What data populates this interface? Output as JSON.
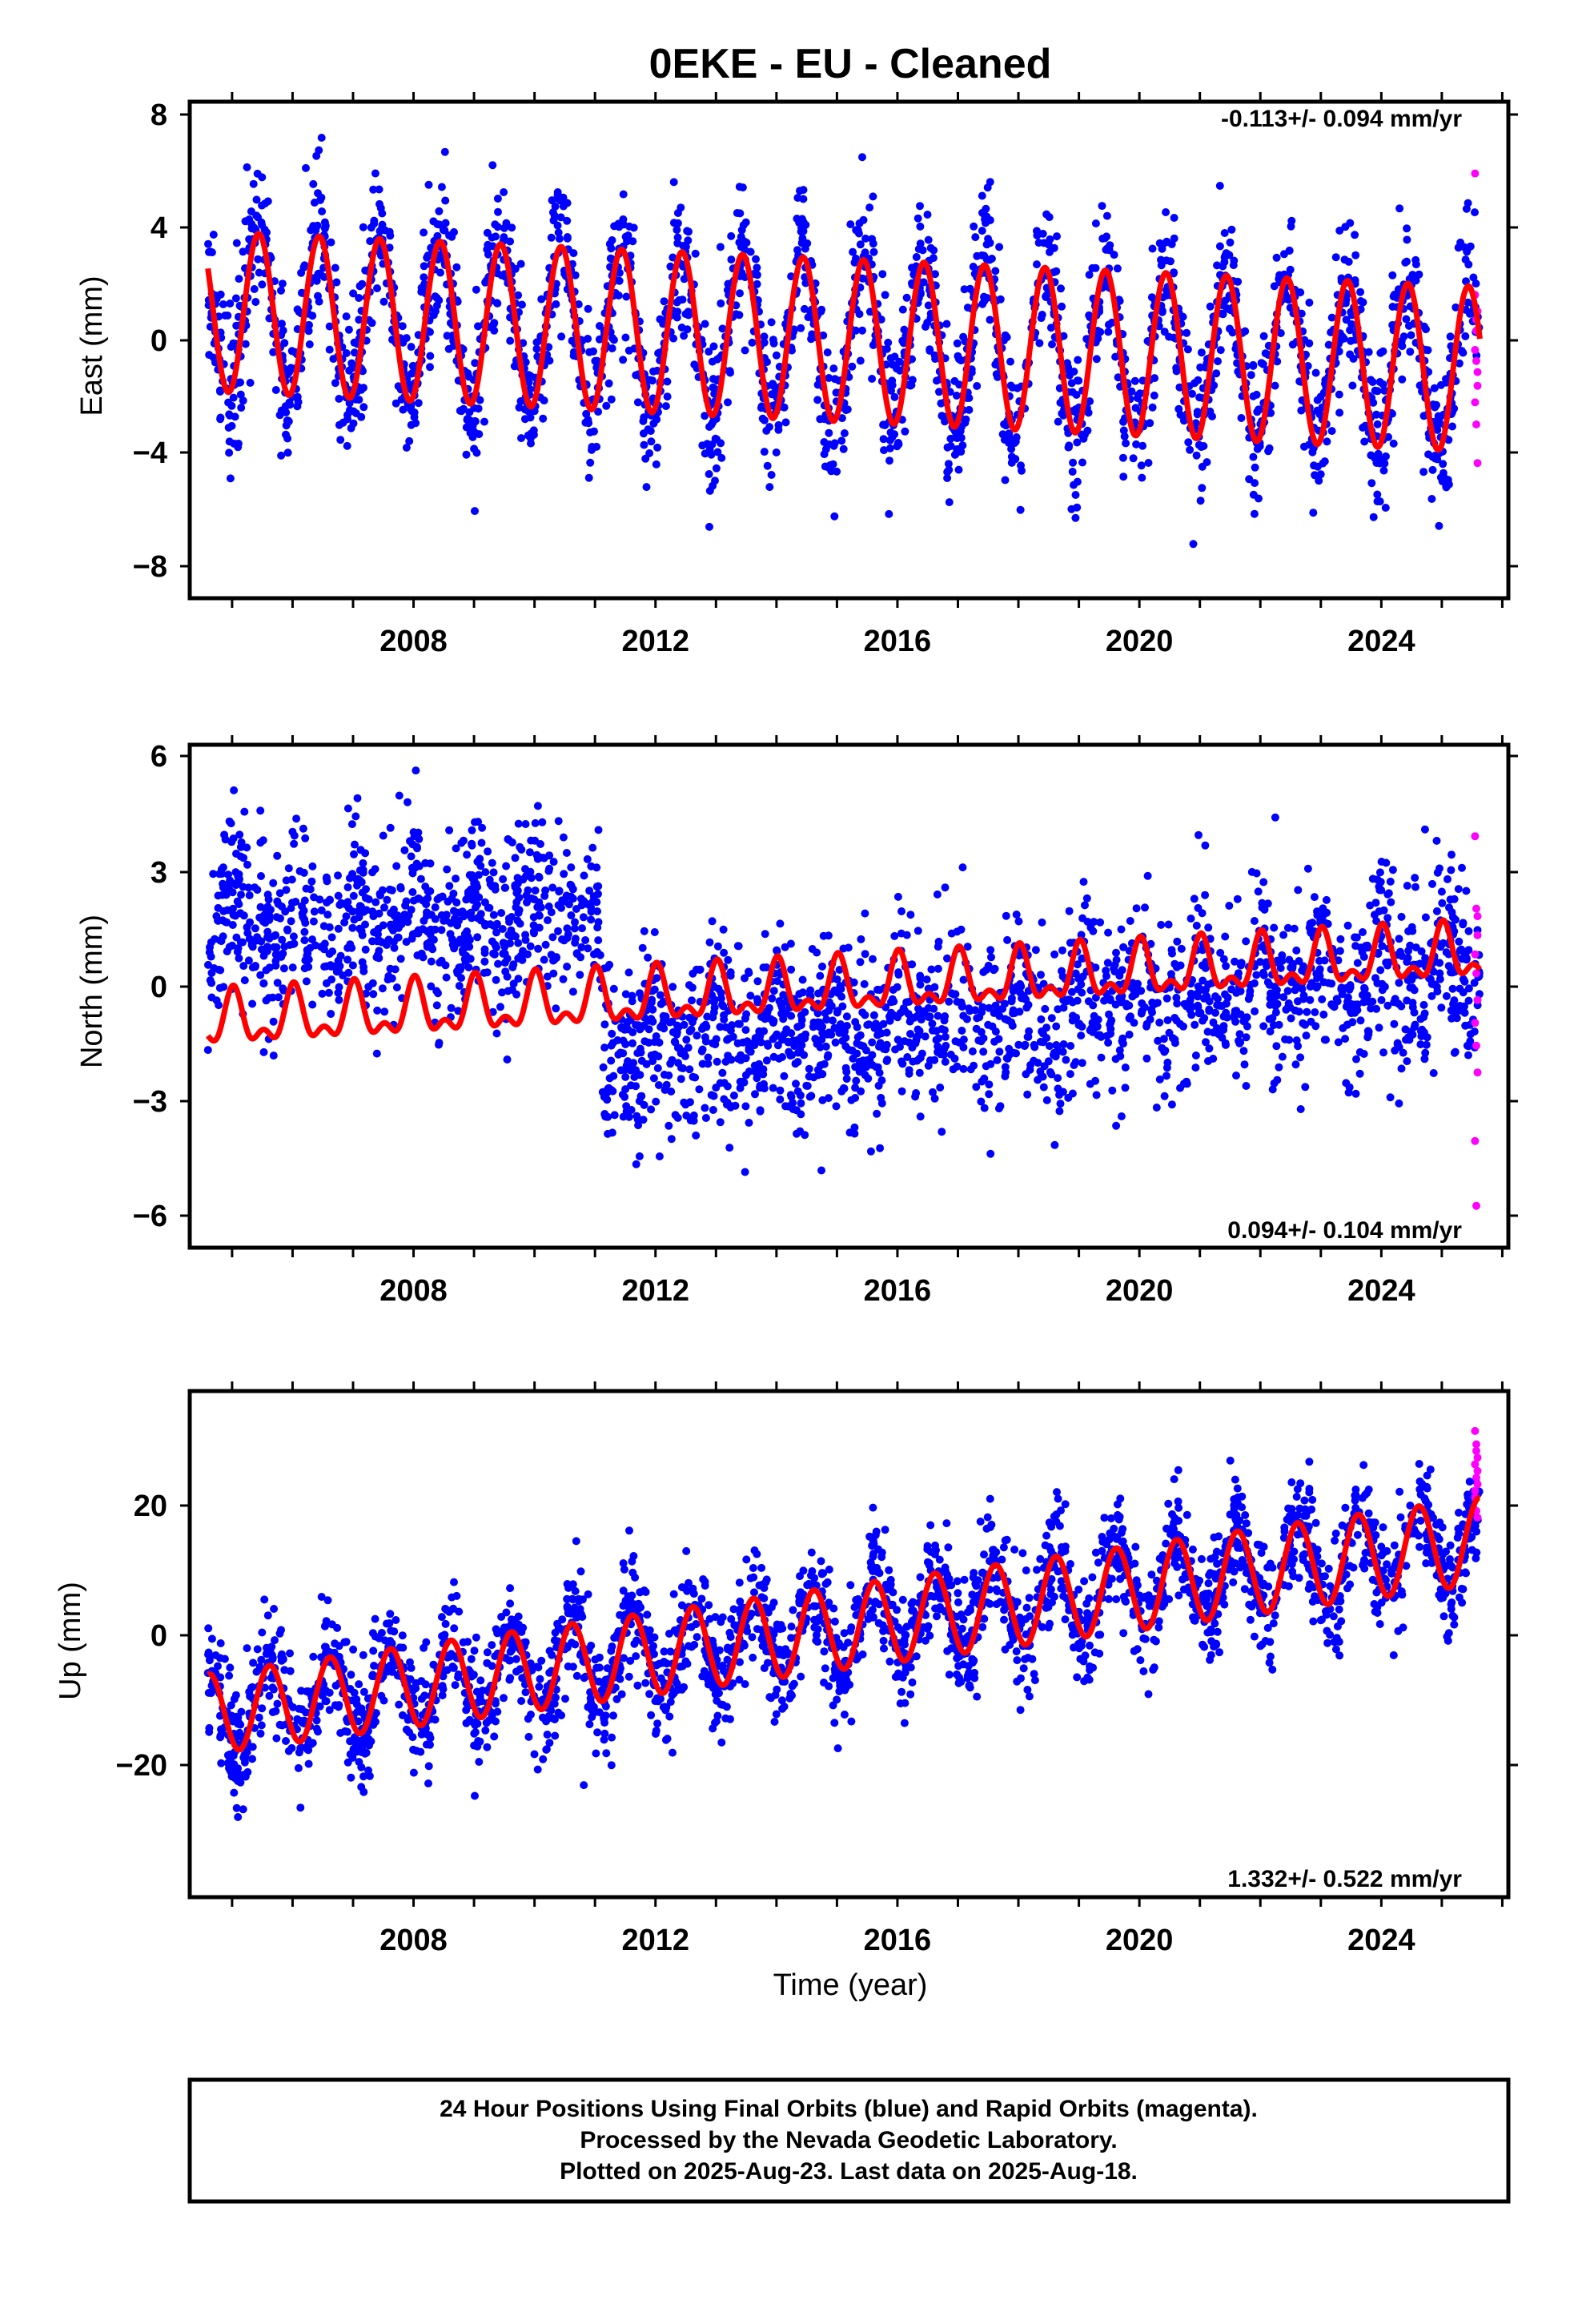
{
  "title": "0EKE  - EU - Cleaned",
  "xlabel": "Time (year)",
  "colors": {
    "final_orbits": "#0000ff",
    "rapid_orbits": "#ff00ff",
    "model": "#ff0000"
  },
  "footer": {
    "line1": "24 Hour Positions Using Final Orbits (blue) and Rapid Orbits (magenta).",
    "line2": "Processed by the Nevada Geodetic Laboratory.",
    "line3": "Plotted on 2025-Aug-23. Last data on 2025-Aug-18."
  },
  "chart_data": [
    {
      "type": "scatter",
      "component": "East",
      "ylabel": "East (mm)",
      "rate": "-0.113+/- 0.094 mm/yr",
      "rate_placement": "top-right",
      "xlim": [
        2004.3,
        2026.1
      ],
      "ylim": [
        -9.2,
        8.8
      ],
      "xticks": [
        "2008",
        "2012",
        "2016",
        "2020",
        "2024"
      ],
      "yticks": [
        "8",
        "4",
        "0",
        "−4",
        "−8"
      ],
      "model": {
        "offset_start": 1.2,
        "offset_end": -0.9,
        "annual_amplitude": 2.9,
        "annual_amplitude_end": 3.0,
        "peak_phase": 0.44,
        "semiannual_amplitude": 0.0
      },
      "scatter_std": 1.35,
      "data_start": 2004.6,
      "data_end": 2025.63,
      "rapid_values": [
        6.2,
        0.5,
        1.2,
        -0.2,
        -0.6,
        -1.5,
        -2.1,
        -2.9,
        -4.3,
        1.8,
        0.9,
        -1.0
      ]
    },
    {
      "type": "scatter",
      "component": "North",
      "ylabel": "North (mm)",
      "rate": "0.094+/- 0.104 mm/yr",
      "rate_placement": "bottom-right",
      "xlim": [
        2004.3,
        2026.1
      ],
      "ylim": [
        -6.8,
        6.4
      ],
      "xticks": [
        "2008",
        "2012",
        "2016",
        "2020",
        "2024"
      ],
      "yticks": [
        "6",
        "3",
        "0",
        "−3",
        "−6"
      ],
      "model": {
        "offset_start": -0.9,
        "offset_end": 0.9,
        "annual_amplitude": 0.6,
        "annual_amplitude_end": 0.6,
        "peak_phase": 0.02,
        "semiannual_amplitude": 0.35
      },
      "scatter_std": 1.15,
      "data_start": 2004.6,
      "data_end": 2025.63,
      "rapid_values": [
        4.0,
        2.1,
        1.4,
        0.9,
        0.4,
        -0.3,
        -0.9,
        -1.5,
        -2.2,
        -4.0,
        -5.7,
        1.9
      ]
    },
    {
      "type": "scatter",
      "component": "Up",
      "ylabel": "Up (mm)",
      "rate": "1.332+/- 0.522 mm/yr",
      "rate_placement": "bottom-right",
      "xlim": [
        2004.3,
        2026.1
      ],
      "ylim": [
        -39,
        37
      ],
      "xticks": [
        "2008",
        "2012",
        "2016",
        "2020",
        "2024"
      ],
      "yticks": [
        "20",
        "0",
        "−20"
      ],
      "model": {
        "offset_start": -11.5,
        "offset_end": 14.5,
        "annual_amplitude": 6.0,
        "annual_amplitude_end": 6.5,
        "peak_phase": 0.62,
        "semiannual_amplitude": 0.0
      },
      "scatter_std": 4.2,
      "data_start": 2004.6,
      "data_end": 2025.63,
      "rapid_values": [
        31.0,
        29.0,
        27.0,
        26.0,
        24.0,
        23.0,
        21.0,
        19.0,
        18.0,
        22.0,
        28.0,
        25.0
      ]
    }
  ]
}
